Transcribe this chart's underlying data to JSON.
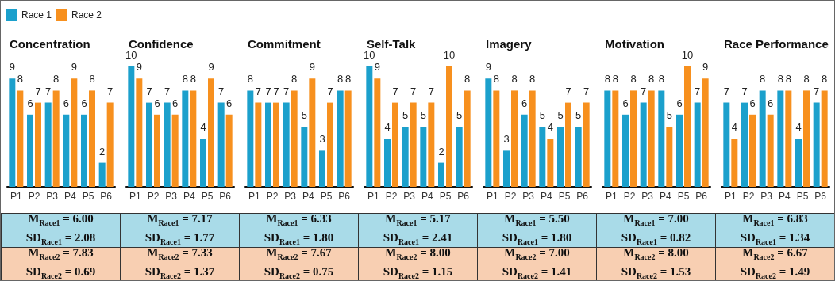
{
  "chart_data": [
    {
      "type": "bar",
      "title": "Concentration",
      "categories": [
        "P1",
        "P2",
        "P3",
        "P4",
        "P5",
        "P6"
      ],
      "series": [
        {
          "name": "Race 1",
          "color": "#1ba0cc",
          "values": [
            9,
            6,
            7,
            6,
            6,
            2
          ]
        },
        {
          "name": "Race 2",
          "color": "#f7901e",
          "values": [
            8,
            7,
            8,
            9,
            8,
            7
          ]
        }
      ],
      "tick_labels": "x",
      "data_labels": true,
      "legend": "top left",
      "annotations": [
        "M$_{Race1}$ = 6.00",
        "SD$_{Race1}$ = 2.08",
        "M$_{Race2}$ = 7.83",
        "SD$_{Race2}$ = 0.69"
      ]
    },
    {
      "type": "bar",
      "title": "Confidence",
      "categories": [
        "P1",
        "P2",
        "P3",
        "P4",
        "P5",
        "P6"
      ],
      "series": [
        {
          "color": "#1ba0cc",
          "values": [
            10,
            7,
            7,
            8,
            4,
            7
          ]
        },
        {
          "color": "#f7901e",
          "values": [
            9,
            6,
            6,
            8,
            9,
            6
          ]
        }
      ],
      "tick_labels": "x",
      "data_labels": true,
      "annotations": [
        "M$_{Race1}$ = 7.17",
        "SD$_{Race1}$ = 1.77",
        "M$_{Race2}$ = 7.33",
        "SD$_{Race2}$ = 1.37"
      ]
    },
    {
      "type": "bar",
      "title": "Commitment",
      "categories": [
        "P1",
        "P2",
        "P3",
        "P4",
        "P5",
        "P6"
      ],
      "series": [
        {
          "color": "#1ba0cc",
          "values": [
            8,
            7,
            7,
            5,
            3,
            8
          ]
        },
        {
          "color": "#f7901e",
          "values": [
            7,
            7,
            8,
            9,
            7,
            8
          ]
        }
      ],
      "tick_labels": "x",
      "data_labels": true,
      "annotations": [
        "M$_{Race1}$ = 6.33",
        "SD$_{Race1}$ = 1.80",
        "M$_{Race2}$ = 7.67",
        "SD$_{Race2}$ = 0.75"
      ]
    },
    {
      "type": "bar",
      "title": "Self-Talk",
      "categories": [
        "P1",
        "P2",
        "P3",
        "P4",
        "P5",
        "P6"
      ],
      "series": [
        {
          "color": "#1ba0cc",
          "values": [
            10,
            4,
            5,
            5,
            2,
            5
          ]
        },
        {
          "color": "#f7901e",
          "values": [
            9,
            7,
            7,
            7,
            10,
            8
          ]
        }
      ],
      "tick_labels": "x",
      "data_labels": true,
      "annotations": [
        "M$_{Race1}$ = 5.17",
        "SD$_{Race1}$ = 2.41",
        "M$_{Race2}$ = 8.00",
        "SD$_{Race2}$ = 1.15"
      ]
    },
    {
      "type": "bar",
      "title": "Imagery",
      "categories": [
        "P1",
        "P2",
        "P3",
        "P4",
        "P5",
        "P6"
      ],
      "series": [
        {
          "color": "#1ba0cc",
          "values": [
            9,
            3,
            6,
            5,
            5,
            5
          ]
        },
        {
          "color": "#f7901e",
          "values": [
            8,
            8,
            8,
            4,
            7,
            7
          ]
        }
      ],
      "tick_labels": "x",
      "data_labels": true,
      "annotations": [
        "M$_{Race1}$ = 5.50",
        "SD$_{Race1}$ = 1.80",
        "M$_{Race2}$ = 7.00",
        "SD$_{Race2}$ = 1.41"
      ]
    },
    {
      "type": "bar",
      "title": "Motivation",
      "categories": [
        "P1",
        "P2",
        "P3",
        "P4",
        "P5",
        "P6"
      ],
      "series": [
        {
          "color": "#1ba0cc",
          "values": [
            8,
            6,
            7,
            8,
            6,
            7
          ]
        },
        {
          "color": "#f7901e",
          "values": [
            8,
            8,
            8,
            5,
            10,
            9
          ]
        }
      ],
      "tick_labels": "x",
      "data_labels": true,
      "annotations": [
        "M$_{Race1}$ = 7.00",
        "SD$_{Race1}$ = 0.82",
        "M$_{Race2}$ = 8.00",
        "SD$_{Race2}$ = 1.53"
      ]
    },
    {
      "type": "bar",
      "title": "Race Performance",
      "categories": [
        "P1",
        "P2",
        "P3",
        "P4",
        "P5",
        "P6"
      ],
      "series": [
        {
          "color": "#1ba0cc",
          "values": [
            7,
            7,
            8,
            8,
            4,
            7
          ]
        },
        {
          "color": "#f7901e",
          "values": [
            4,
            6,
            6,
            8,
            8,
            8
          ]
        }
      ],
      "tick_labels": "x",
      "data_labels": true,
      "annotations": [
        "M$_{Race1}$ = 6.83",
        "SD$_{Race1}$ = 1.34",
        "M$_{Race2}$ = 6.67",
        "SD$_{Race2}$ = 1.49"
      ]
    }
  ]
}
